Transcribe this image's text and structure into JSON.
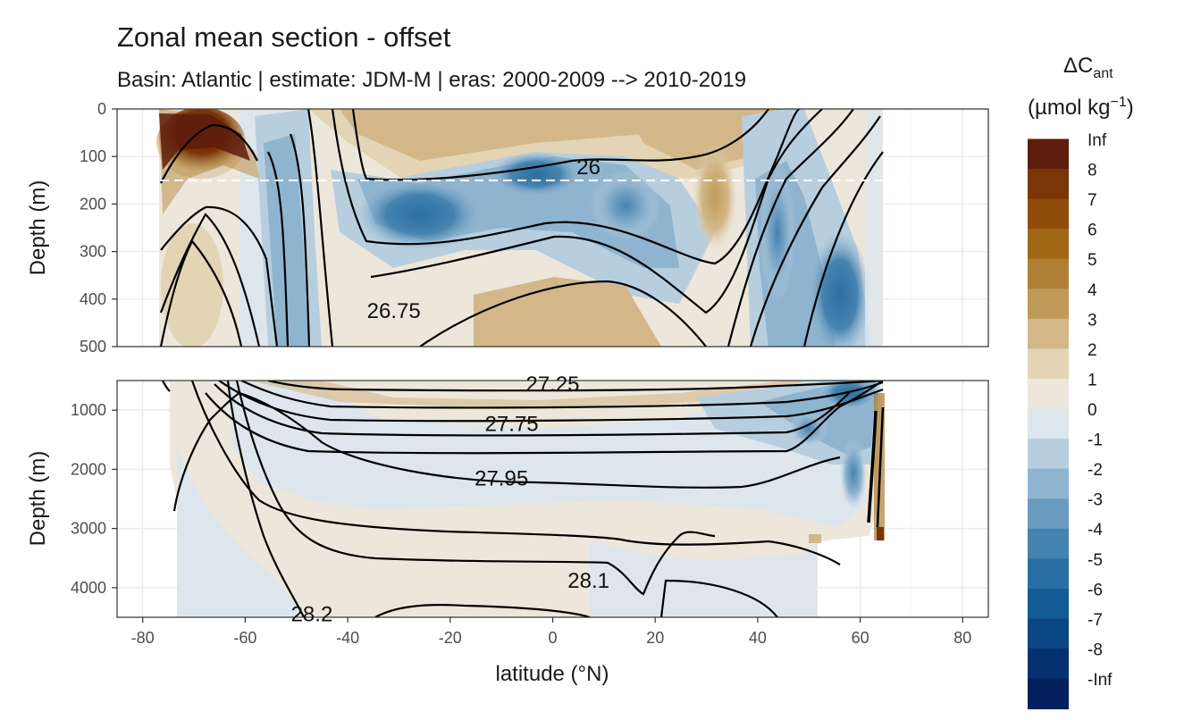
{
  "chart_data": {
    "type": "contour",
    "title": "Zonal mean section - offset",
    "subtitle": "Basin: Atlantic | estimate: JDM-M | eras: 2000-2009 --> 2010-2019",
    "xlabel": "latitude (°N)",
    "ylabel": "Depth (m)",
    "xlim": [
      -85,
      85
    ],
    "x_ticks": [
      "-80",
      "-60",
      "-40",
      "-20",
      "0",
      "20",
      "40",
      "60",
      "80"
    ],
    "panels": [
      {
        "name": "upper",
        "ylim": [
          0,
          500
        ],
        "y_ticks": [
          "0",
          "100",
          "200",
          "300",
          "400",
          "500"
        ],
        "reference_depth_dashed": 150
      },
      {
        "name": "lower",
        "ylim": [
          500,
          4500
        ],
        "y_ticks": [
          "1000",
          "2000",
          "3000",
          "4000"
        ]
      }
    ],
    "isopycnal_labels": [
      {
        "text": "26",
        "lat": 7,
        "depth": 122
      },
      {
        "text": "26.75",
        "lat": -31,
        "depth": 425
      },
      {
        "text": "27.25",
        "lat": 0,
        "depth": 560
      },
      {
        "text": "27.75",
        "lat": -8,
        "depth": 1230
      },
      {
        "text": "27.95",
        "lat": -10,
        "depth": 2150
      },
      {
        "text": "28.1",
        "lat": 7,
        "depth": 3880
      },
      {
        "text": "28.2",
        "lat": -47,
        "depth": 4450
      }
    ],
    "legend": {
      "title_main": "ΔC",
      "title_sub": "ant",
      "unit_main": "(µmol kg",
      "unit_sup": "−1",
      "unit_close": ")",
      "levels": [
        "Inf",
        "8",
        "7",
        "6",
        "5",
        "4",
        "3",
        "2",
        "1",
        "0",
        "-1",
        "-2",
        "-3",
        "-4",
        "-5",
        "-6",
        "-7",
        "-8",
        "-Inf"
      ],
      "colors": [
        "#5e1c0c",
        "#7a3508",
        "#8f4b08",
        "#a06816",
        "#b08035",
        "#c09a58",
        "#d3b788",
        "#e3d4b6",
        "#ede7db",
        "#dde6ec",
        "#b7cedf",
        "#8fb4cf",
        "#6a9bbf",
        "#4683b0",
        "#2a6fa3",
        "#135c95",
        "#0a4584",
        "#053170",
        "#031f5e"
      ]
    }
  }
}
